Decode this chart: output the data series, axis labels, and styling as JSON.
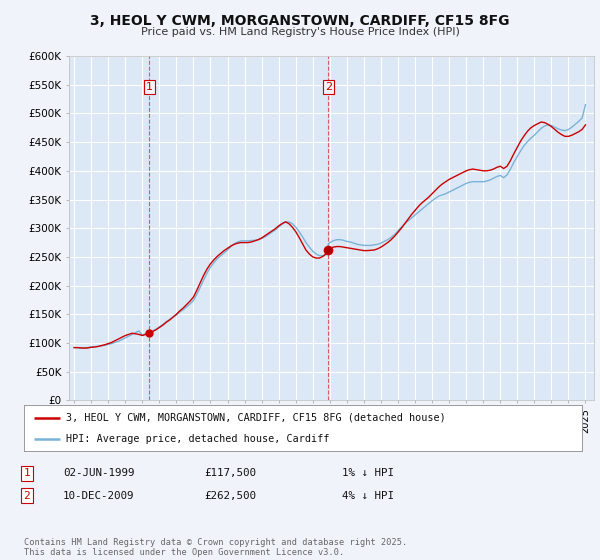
{
  "title_line1": "3, HEOL Y CWM, MORGANSTOWN, CARDIFF, CF15 8FG",
  "title_line2": "Price paid vs. HM Land Registry's House Price Index (HPI)",
  "background_color": "#f0f4fa",
  "plot_bg_color": "#dce8f5",
  "grid_color": "#ffffff",
  "hpi_color": "#7ab3d8",
  "price_color": "#cc0000",
  "ylim": [
    0,
    600000
  ],
  "yticks": [
    0,
    50000,
    100000,
    150000,
    200000,
    250000,
    300000,
    350000,
    400000,
    450000,
    500000,
    550000,
    600000
  ],
  "ytick_labels": [
    "£0",
    "£50K",
    "£100K",
    "£150K",
    "£200K",
    "£250K",
    "£300K",
    "£350K",
    "£400K",
    "£450K",
    "£500K",
    "£550K",
    "£600K"
  ],
  "xlim": [
    1994.7,
    2025.5
  ],
  "xticks": [
    1995,
    1996,
    1997,
    1998,
    1999,
    2000,
    2001,
    2002,
    2003,
    2004,
    2005,
    2006,
    2007,
    2008,
    2009,
    2010,
    2011,
    2012,
    2013,
    2014,
    2015,
    2016,
    2017,
    2018,
    2019,
    2020,
    2021,
    2022,
    2023,
    2024,
    2025
  ],
  "legend_label_price": "3, HEOL Y CWM, MORGANSTOWN, CARDIFF, CF15 8FG (detached house)",
  "legend_label_hpi": "HPI: Average price, detached house, Cardiff",
  "annotation1_label": "1",
  "annotation1_date": "02-JUN-1999",
  "annotation1_price": "£117,500",
  "annotation1_hpi": "1% ↓ HPI",
  "annotation2_label": "2",
  "annotation2_date": "10-DEC-2009",
  "annotation2_price": "£262,500",
  "annotation2_hpi": "4% ↓ HPI",
  "footer": "Contains HM Land Registry data © Crown copyright and database right 2025.\nThis data is licensed under the Open Government Licence v3.0.",
  "marker1_x": 1999.42,
  "marker1_y": 117500,
  "marker2_x": 2009.92,
  "marker2_y": 262500,
  "vline1_x": 1999.42,
  "vline2_x": 2009.92,
  "hpi_data": [
    [
      1995.0,
      92000
    ],
    [
      1995.2,
      91500
    ],
    [
      1995.4,
      91000
    ],
    [
      1995.6,
      91500
    ],
    [
      1995.8,
      92000
    ],
    [
      1996.0,
      93000
    ],
    [
      1996.2,
      93500
    ],
    [
      1996.4,
      94000
    ],
    [
      1996.6,
      95000
    ],
    [
      1996.8,
      96000
    ],
    [
      1997.0,
      97500
    ],
    [
      1997.2,
      99000
    ],
    [
      1997.4,
      101000
    ],
    [
      1997.6,
      103000
    ],
    [
      1997.8,
      106000
    ],
    [
      1998.0,
      109000
    ],
    [
      1998.2,
      112000
    ],
    [
      1998.4,
      115000
    ],
    [
      1998.6,
      118000
    ],
    [
      1998.8,
      121000
    ],
    [
      1999.0,
      114000
    ],
    [
      1999.2,
      116000
    ],
    [
      1999.42,
      118700
    ],
    [
      1999.6,
      121000
    ],
    [
      1999.8,
      124000
    ],
    [
      2000.0,
      128000
    ],
    [
      2000.2,
      132000
    ],
    [
      2000.4,
      137000
    ],
    [
      2000.6,
      141000
    ],
    [
      2000.8,
      145000
    ],
    [
      2001.0,
      149000
    ],
    [
      2001.2,
      154000
    ],
    [
      2001.4,
      158000
    ],
    [
      2001.6,
      163000
    ],
    [
      2001.8,
      168000
    ],
    [
      2002.0,
      174000
    ],
    [
      2002.2,
      185000
    ],
    [
      2002.4,
      197000
    ],
    [
      2002.6,
      210000
    ],
    [
      2002.8,
      222000
    ],
    [
      2003.0,
      232000
    ],
    [
      2003.2,
      240000
    ],
    [
      2003.4,
      247000
    ],
    [
      2003.6,
      252000
    ],
    [
      2003.8,
      257000
    ],
    [
      2004.0,
      262000
    ],
    [
      2004.2,
      268000
    ],
    [
      2004.4,
      273000
    ],
    [
      2004.6,
      276000
    ],
    [
      2004.8,
      278000
    ],
    [
      2005.0,
      278000
    ],
    [
      2005.2,
      278000
    ],
    [
      2005.4,
      278500
    ],
    [
      2005.6,
      279000
    ],
    [
      2005.8,
      280000
    ],
    [
      2006.0,
      282000
    ],
    [
      2006.2,
      285000
    ],
    [
      2006.4,
      289000
    ],
    [
      2006.6,
      293000
    ],
    [
      2006.8,
      297000
    ],
    [
      2007.0,
      302000
    ],
    [
      2007.2,
      307000
    ],
    [
      2007.4,
      311000
    ],
    [
      2007.6,
      311000
    ],
    [
      2007.8,
      308000
    ],
    [
      2008.0,
      302000
    ],
    [
      2008.2,
      294000
    ],
    [
      2008.4,
      285000
    ],
    [
      2008.6,
      275000
    ],
    [
      2008.8,
      267000
    ],
    [
      2009.0,
      260000
    ],
    [
      2009.2,
      255000
    ],
    [
      2009.4,
      252000
    ],
    [
      2009.6,
      252000
    ],
    [
      2009.8,
      254000
    ],
    [
      2009.92,
      272500
    ],
    [
      2010.0,
      275000
    ],
    [
      2010.2,
      278000
    ],
    [
      2010.4,
      280000
    ],
    [
      2010.6,
      280000
    ],
    [
      2010.8,
      279000
    ],
    [
      2011.0,
      277000
    ],
    [
      2011.2,
      276000
    ],
    [
      2011.4,
      274000
    ],
    [
      2011.6,
      272000
    ],
    [
      2011.8,
      271000
    ],
    [
      2012.0,
      270000
    ],
    [
      2012.2,
      270000
    ],
    [
      2012.4,
      270000
    ],
    [
      2012.6,
      271000
    ],
    [
      2012.8,
      272000
    ],
    [
      2013.0,
      274000
    ],
    [
      2013.2,
      277000
    ],
    [
      2013.4,
      280000
    ],
    [
      2013.6,
      284000
    ],
    [
      2013.8,
      289000
    ],
    [
      2014.0,
      295000
    ],
    [
      2014.2,
      302000
    ],
    [
      2014.4,
      308000
    ],
    [
      2014.6,
      313000
    ],
    [
      2014.8,
      318000
    ],
    [
      2015.0,
      323000
    ],
    [
      2015.2,
      328000
    ],
    [
      2015.4,
      333000
    ],
    [
      2015.6,
      338000
    ],
    [
      2015.8,
      343000
    ],
    [
      2016.0,
      348000
    ],
    [
      2016.2,
      352000
    ],
    [
      2016.4,
      356000
    ],
    [
      2016.6,
      358000
    ],
    [
      2016.8,
      360000
    ],
    [
      2017.0,
      363000
    ],
    [
      2017.2,
      366000
    ],
    [
      2017.4,
      369000
    ],
    [
      2017.6,
      372000
    ],
    [
      2017.8,
      375000
    ],
    [
      2018.0,
      378000
    ],
    [
      2018.2,
      380000
    ],
    [
      2018.4,
      381000
    ],
    [
      2018.6,
      381000
    ],
    [
      2018.8,
      381000
    ],
    [
      2019.0,
      381000
    ],
    [
      2019.2,
      382000
    ],
    [
      2019.4,
      384000
    ],
    [
      2019.6,
      387000
    ],
    [
      2019.8,
      390000
    ],
    [
      2020.0,
      392000
    ],
    [
      2020.2,
      388000
    ],
    [
      2020.4,
      393000
    ],
    [
      2020.6,
      403000
    ],
    [
      2020.8,
      415000
    ],
    [
      2021.0,
      425000
    ],
    [
      2021.2,
      435000
    ],
    [
      2021.4,
      444000
    ],
    [
      2021.6,
      451000
    ],
    [
      2021.8,
      457000
    ],
    [
      2022.0,
      462000
    ],
    [
      2022.2,
      468000
    ],
    [
      2022.4,
      474000
    ],
    [
      2022.6,
      478000
    ],
    [
      2022.8,
      480000
    ],
    [
      2023.0,
      479000
    ],
    [
      2023.2,
      476000
    ],
    [
      2023.4,
      473000
    ],
    [
      2023.6,
      471000
    ],
    [
      2023.8,
      470000
    ],
    [
      2024.0,
      472000
    ],
    [
      2024.2,
      476000
    ],
    [
      2024.4,
      481000
    ],
    [
      2024.6,
      486000
    ],
    [
      2024.8,
      492000
    ],
    [
      2025.0,
      515000
    ]
  ],
  "price_line_data": [
    [
      1995.0,
      92000
    ],
    [
      1995.2,
      92000
    ],
    [
      1995.4,
      91500
    ],
    [
      1995.6,
      91000
    ],
    [
      1995.8,
      91500
    ],
    [
      1996.0,
      92500
    ],
    [
      1996.2,
      93000
    ],
    [
      1996.4,
      94000
    ],
    [
      1996.6,
      95500
    ],
    [
      1996.8,
      97000
    ],
    [
      1997.0,
      99000
    ],
    [
      1997.2,
      101000
    ],
    [
      1997.4,
      104000
    ],
    [
      1997.6,
      107000
    ],
    [
      1997.8,
      110000
    ],
    [
      1998.0,
      113000
    ],
    [
      1998.2,
      115000
    ],
    [
      1998.4,
      117000
    ],
    [
      1998.6,
      116000
    ],
    [
      1998.8,
      115000
    ],
    [
      1999.0,
      113000
    ],
    [
      1999.2,
      115000
    ],
    [
      1999.42,
      117500
    ],
    [
      1999.6,
      120000
    ],
    [
      1999.8,
      123000
    ],
    [
      2000.0,
      127000
    ],
    [
      2000.2,
      131000
    ],
    [
      2000.4,
      136000
    ],
    [
      2000.6,
      140000
    ],
    [
      2000.8,
      145000
    ],
    [
      2001.0,
      150000
    ],
    [
      2001.2,
      156000
    ],
    [
      2001.4,
      161000
    ],
    [
      2001.6,
      167000
    ],
    [
      2001.8,
      173000
    ],
    [
      2002.0,
      180000
    ],
    [
      2002.2,
      192000
    ],
    [
      2002.4,
      205000
    ],
    [
      2002.6,
      218000
    ],
    [
      2002.8,
      229000
    ],
    [
      2003.0,
      238000
    ],
    [
      2003.2,
      245000
    ],
    [
      2003.4,
      251000
    ],
    [
      2003.6,
      256000
    ],
    [
      2003.8,
      261000
    ],
    [
      2004.0,
      265000
    ],
    [
      2004.2,
      269000
    ],
    [
      2004.4,
      272000
    ],
    [
      2004.6,
      274000
    ],
    [
      2004.8,
      275000
    ],
    [
      2005.0,
      275000
    ],
    [
      2005.2,
      275000
    ],
    [
      2005.4,
      276000
    ],
    [
      2005.6,
      278000
    ],
    [
      2005.8,
      280000
    ],
    [
      2006.0,
      283000
    ],
    [
      2006.2,
      287000
    ],
    [
      2006.4,
      291000
    ],
    [
      2006.6,
      295000
    ],
    [
      2006.8,
      299000
    ],
    [
      2007.0,
      304000
    ],
    [
      2007.2,
      308000
    ],
    [
      2007.4,
      311000
    ],
    [
      2007.6,
      308000
    ],
    [
      2007.8,
      302000
    ],
    [
      2008.0,
      294000
    ],
    [
      2008.2,
      284000
    ],
    [
      2008.4,
      273000
    ],
    [
      2008.6,
      262000
    ],
    [
      2008.8,
      255000
    ],
    [
      2009.0,
      250000
    ],
    [
      2009.2,
      248000
    ],
    [
      2009.4,
      248000
    ],
    [
      2009.6,
      251000
    ],
    [
      2009.8,
      256000
    ],
    [
      2009.92,
      262500
    ],
    [
      2010.0,
      265000
    ],
    [
      2010.2,
      267000
    ],
    [
      2010.4,
      268000
    ],
    [
      2010.6,
      268000
    ],
    [
      2010.8,
      267000
    ],
    [
      2011.0,
      266000
    ],
    [
      2011.2,
      265000
    ],
    [
      2011.4,
      264000
    ],
    [
      2011.6,
      263000
    ],
    [
      2011.8,
      262000
    ],
    [
      2012.0,
      261000
    ],
    [
      2012.2,
      261000
    ],
    [
      2012.4,
      261500
    ],
    [
      2012.6,
      262000
    ],
    [
      2012.8,
      264000
    ],
    [
      2013.0,
      267000
    ],
    [
      2013.2,
      271000
    ],
    [
      2013.4,
      275000
    ],
    [
      2013.6,
      280000
    ],
    [
      2013.8,
      286000
    ],
    [
      2014.0,
      293000
    ],
    [
      2014.2,
      300000
    ],
    [
      2014.4,
      308000
    ],
    [
      2014.6,
      316000
    ],
    [
      2014.8,
      324000
    ],
    [
      2015.0,
      331000
    ],
    [
      2015.2,
      338000
    ],
    [
      2015.4,
      344000
    ],
    [
      2015.6,
      349000
    ],
    [
      2015.8,
      354000
    ],
    [
      2016.0,
      360000
    ],
    [
      2016.2,
      366000
    ],
    [
      2016.4,
      372000
    ],
    [
      2016.6,
      377000
    ],
    [
      2016.8,
      381000
    ],
    [
      2017.0,
      385000
    ],
    [
      2017.2,
      388000
    ],
    [
      2017.4,
      391000
    ],
    [
      2017.6,
      394000
    ],
    [
      2017.8,
      397000
    ],
    [
      2018.0,
      400000
    ],
    [
      2018.2,
      402000
    ],
    [
      2018.4,
      403000
    ],
    [
      2018.6,
      402000
    ],
    [
      2018.8,
      401000
    ],
    [
      2019.0,
      400000
    ],
    [
      2019.2,
      400000
    ],
    [
      2019.4,
      401000
    ],
    [
      2019.6,
      403000
    ],
    [
      2019.8,
      406000
    ],
    [
      2020.0,
      408000
    ],
    [
      2020.2,
      404000
    ],
    [
      2020.4,
      408000
    ],
    [
      2020.6,
      418000
    ],
    [
      2020.8,
      430000
    ],
    [
      2021.0,
      441000
    ],
    [
      2021.2,
      452000
    ],
    [
      2021.4,
      461000
    ],
    [
      2021.6,
      469000
    ],
    [
      2021.8,
      475000
    ],
    [
      2022.0,
      479000
    ],
    [
      2022.2,
      482000
    ],
    [
      2022.4,
      485000
    ],
    [
      2022.6,
      484000
    ],
    [
      2022.8,
      481000
    ],
    [
      2023.0,
      477000
    ],
    [
      2023.2,
      472000
    ],
    [
      2023.4,
      467000
    ],
    [
      2023.6,
      463000
    ],
    [
      2023.8,
      460000
    ],
    [
      2024.0,
      460000
    ],
    [
      2024.2,
      462000
    ],
    [
      2024.4,
      465000
    ],
    [
      2024.6,
      468000
    ],
    [
      2024.8,
      472000
    ],
    [
      2025.0,
      480000
    ]
  ]
}
